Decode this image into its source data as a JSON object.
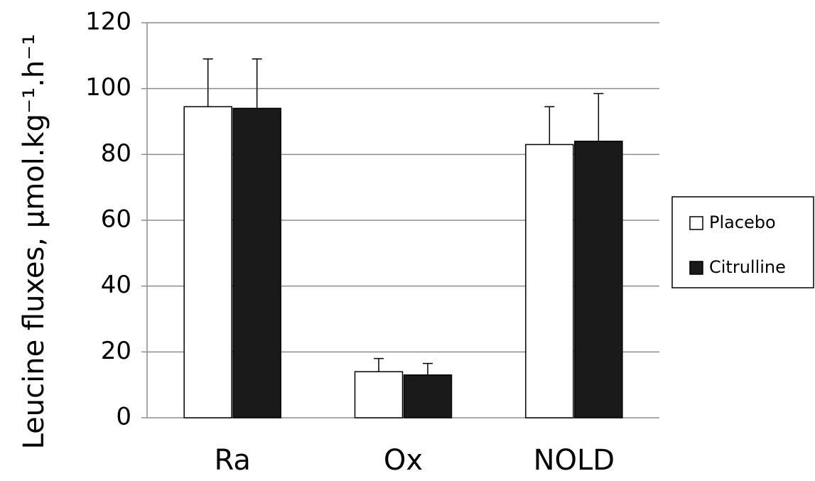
{
  "chart_data": {
    "type": "bar",
    "y_label": "Leucine fluxes, µmol.kg⁻¹.h⁻¹",
    "categories": [
      "Ra",
      "Ox",
      "NOLD"
    ],
    "series": [
      {
        "name": "Placebo",
        "color": "#ffffff",
        "values": [
          94.5,
          14,
          83
        ],
        "errors": [
          14.5,
          4,
          11.5
        ]
      },
      {
        "name": "Citrulline",
        "color": "#1a1a1a",
        "values": [
          94,
          13,
          84
        ],
        "errors": [
          15,
          3.5,
          14.5
        ]
      }
    ],
    "ylim": [
      0,
      120
    ],
    "yticks": [
      0,
      20,
      40,
      60,
      80,
      100,
      120
    ],
    "grid": true,
    "legend": "right"
  }
}
